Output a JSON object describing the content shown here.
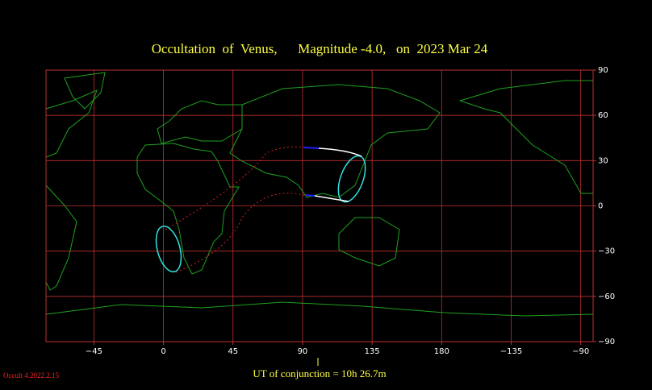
{
  "map": {
    "title": "Occultation  of  Venus,      Magnitude -4.0,   on  2023 Mar 24",
    "lon_range": [
      -76,
      278
    ],
    "lat_range": [
      -90,
      90
    ],
    "lon_ticks": [
      {
        "value": -45,
        "label": "−45"
      },
      0,
      45,
      90,
      135,
      180,
      {
        "value": -135,
        "label": "−135"
      },
      {
        "value": -90,
        "label": "−90"
      }
    ],
    "lat_ticks": [
      90,
      60,
      30,
      0,
      {
        "value": -30,
        "label": "−30"
      },
      {
        "value": -60,
        "label": "−60"
      },
      {
        "value": -90,
        "label": "−90"
      }
    ],
    "footer": "UT of conjunction = 10h 26.7m",
    "version": "Occult 4.2022.2.15"
  }
}
